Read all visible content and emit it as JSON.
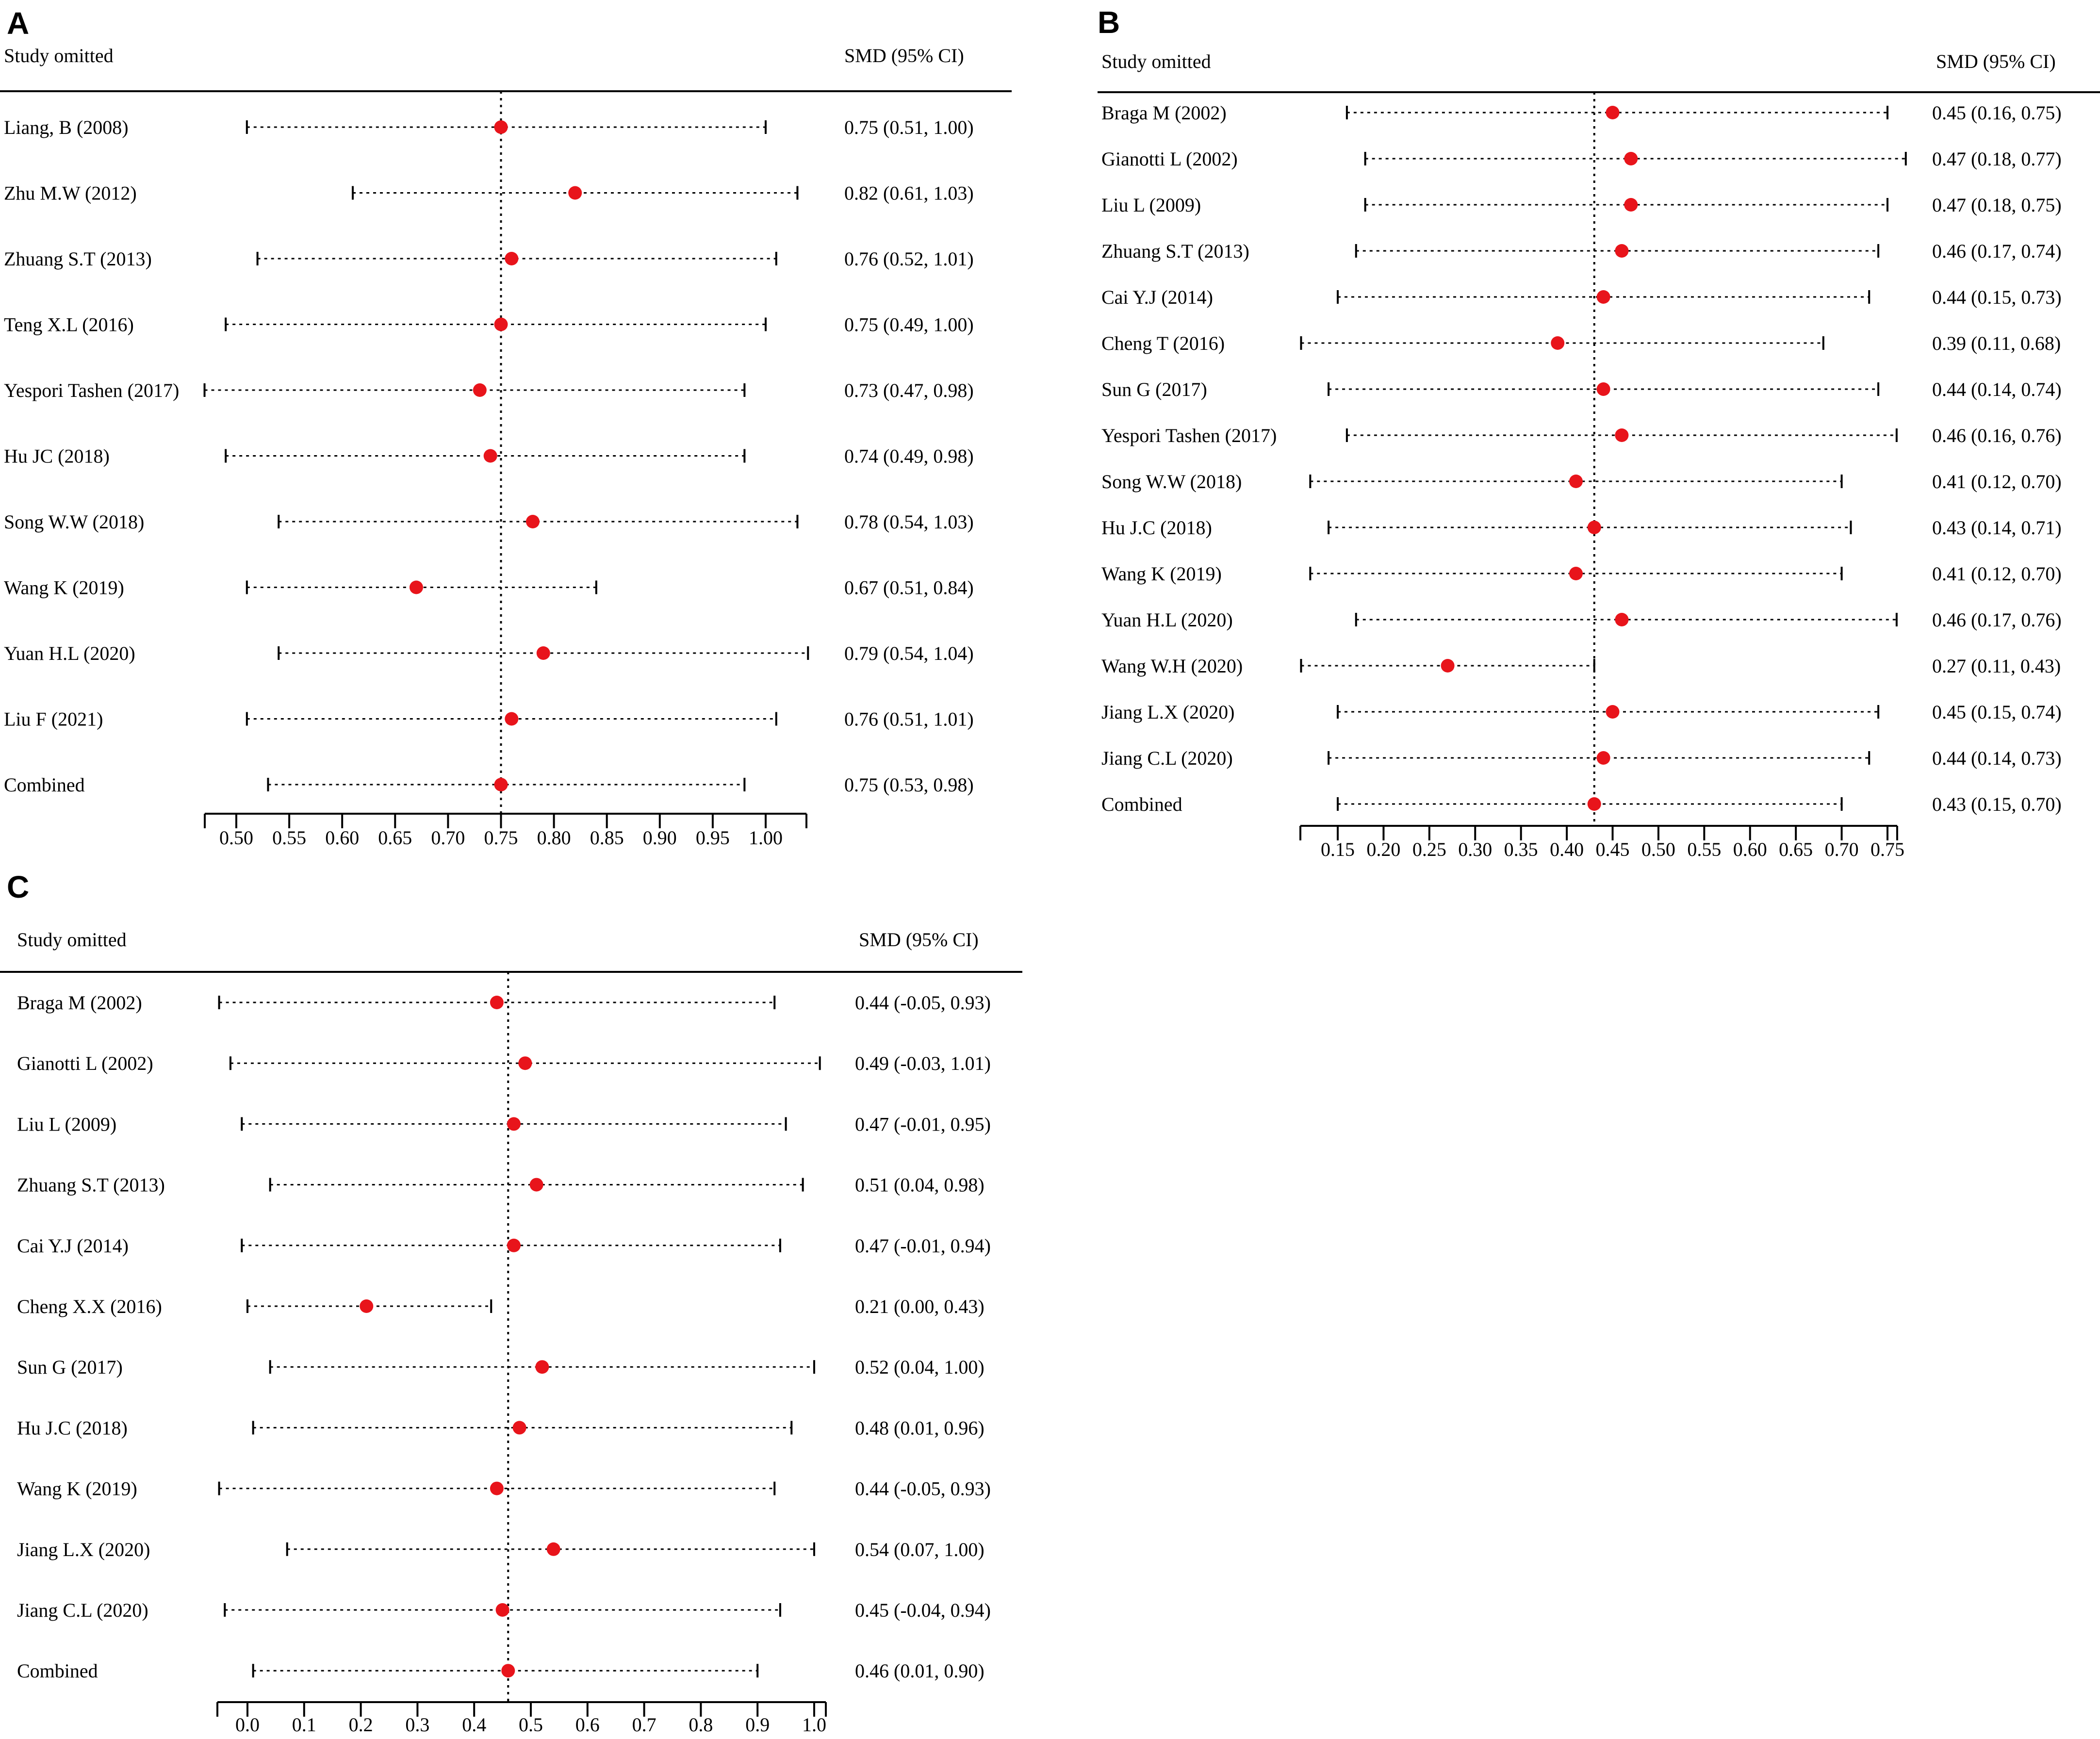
{
  "colors": {
    "point": "#e8141b",
    "line": "#000000",
    "background": "#ffffff"
  },
  "chart_data": [
    {
      "panel": "A",
      "type": "forest",
      "header_left": "Study omitted",
      "header_right": "SMD (95% CI)",
      "xlim": [
        0.47,
        1.04
      ],
      "ticks": [
        0.5,
        0.55,
        0.6,
        0.65,
        0.7,
        0.75,
        0.8,
        0.85,
        0.9,
        0.95,
        1.0
      ],
      "tick_labels": [
        "0.50",
        "0.55",
        "0.60",
        "0.65",
        "0.70",
        "0.75",
        "0.80",
        "0.85",
        "0.90",
        "0.95",
        "1.00"
      ],
      "reference": 0.75,
      "studies": [
        {
          "label": "Liang, B (2008)",
          "est": 0.75,
          "lo": 0.51,
          "hi": 1.0,
          "ci_text": "0.75 (0.51, 1.00)"
        },
        {
          "label": "Zhu M.W (2012)",
          "est": 0.82,
          "lo": 0.61,
          "hi": 1.03,
          "ci_text": "0.82 (0.61, 1.03)"
        },
        {
          "label": "Zhuang S.T (2013)",
          "est": 0.76,
          "lo": 0.52,
          "hi": 1.01,
          "ci_text": "0.76 (0.52, 1.01)"
        },
        {
          "label": "Teng X.L (2016)",
          "est": 0.75,
          "lo": 0.49,
          "hi": 1.0,
          "ci_text": "0.75 (0.49, 1.00)"
        },
        {
          "label": "Yespori Tashen (2017)",
          "est": 0.73,
          "lo": 0.47,
          "hi": 0.98,
          "ci_text": "0.73 (0.47, 0.98)"
        },
        {
          "label": "Hu JC (2018)",
          "est": 0.74,
          "lo": 0.49,
          "hi": 0.98,
          "ci_text": "0.74 (0.49, 0.98)"
        },
        {
          "label": "Song W.W (2018)",
          "est": 0.78,
          "lo": 0.54,
          "hi": 1.03,
          "ci_text": "0.78 (0.54, 1.03)"
        },
        {
          "label": "Wang K (2019)",
          "est": 0.67,
          "lo": 0.51,
          "hi": 0.84,
          "ci_text": "0.67 (0.51, 0.84)"
        },
        {
          "label": "Yuan H.L (2020)",
          "est": 0.79,
          "lo": 0.54,
          "hi": 1.04,
          "ci_text": "0.79 (0.54, 1.04)"
        },
        {
          "label": "Liu F (2021)",
          "est": 0.76,
          "lo": 0.51,
          "hi": 1.01,
          "ci_text": "0.76 (0.51, 1.01)"
        },
        {
          "label": "Combined",
          "est": 0.75,
          "lo": 0.53,
          "hi": 0.98,
          "ci_text": "0.75 (0.53, 0.98)"
        }
      ]
    },
    {
      "panel": "B",
      "type": "forest",
      "header_left": "Study omitted",
      "header_right": "SMD (95% CI)",
      "xlim": [
        0.11,
        0.76
      ],
      "ticks": [
        0.15,
        0.2,
        0.25,
        0.3,
        0.35,
        0.4,
        0.45,
        0.5,
        0.55,
        0.6,
        0.65,
        0.7,
        0.75
      ],
      "tick_labels": [
        "0.15",
        "0.20",
        "0.25",
        "0.30",
        "0.35",
        "0.40",
        "0.45",
        "0.50",
        "0.55",
        "0.60",
        "0.65",
        "0.70",
        "0.75"
      ],
      "reference": 0.43,
      "studies": [
        {
          "label": "Braga M (2002)",
          "est": 0.45,
          "lo": 0.16,
          "hi": 0.75,
          "ci_text": "0.45 (0.16, 0.75)"
        },
        {
          "label": "Gianotti L (2002)",
          "est": 0.47,
          "lo": 0.18,
          "hi": 0.77,
          "ci_text": "0.47 (0.18, 0.77)"
        },
        {
          "label": "Liu L (2009)",
          "est": 0.47,
          "lo": 0.18,
          "hi": 0.75,
          "ci_text": "0.47 (0.18, 0.75)"
        },
        {
          "label": "Zhuang S.T (2013)",
          "est": 0.46,
          "lo": 0.17,
          "hi": 0.74,
          "ci_text": "0.46 (0.17, 0.74)"
        },
        {
          "label": "Cai Y.J (2014)",
          "est": 0.44,
          "lo": 0.15,
          "hi": 0.73,
          "ci_text": "0.44 (0.15, 0.73)"
        },
        {
          "label": "Cheng T (2016)",
          "est": 0.39,
          "lo": 0.11,
          "hi": 0.68,
          "ci_text": "0.39 (0.11, 0.68)"
        },
        {
          "label": "Sun G (2017)",
          "est": 0.44,
          "lo": 0.14,
          "hi": 0.74,
          "ci_text": "0.44 (0.14, 0.74)"
        },
        {
          "label": "Yespori Tashen (2017)",
          "est": 0.46,
          "lo": 0.16,
          "hi": 0.76,
          "ci_text": "0.46 (0.16, 0.76)"
        },
        {
          "label": "Song W.W (2018)",
          "est": 0.41,
          "lo": 0.12,
          "hi": 0.7,
          "ci_text": "0.41 (0.12, 0.70)"
        },
        {
          "label": "Hu J.C (2018)",
          "est": 0.43,
          "lo": 0.14,
          "hi": 0.71,
          "ci_text": "0.43 (0.14, 0.71)"
        },
        {
          "label": "Wang K (2019)",
          "est": 0.41,
          "lo": 0.12,
          "hi": 0.7,
          "ci_text": "0.41 (0.12, 0.70)"
        },
        {
          "label": "Yuan H.L (2020)",
          "est": 0.46,
          "lo": 0.17,
          "hi": 0.76,
          "ci_text": "0.46 (0.17, 0.76)"
        },
        {
          "label": "Wang W.H (2020)",
          "est": 0.27,
          "lo": 0.11,
          "hi": 0.43,
          "ci_text": "0.27 (0.11, 0.43)"
        },
        {
          "label": "Jiang L.X (2020)",
          "est": 0.45,
          "lo": 0.15,
          "hi": 0.74,
          "ci_text": "0.45 (0.15, 0.74)"
        },
        {
          "label": "Jiang C.L (2020)",
          "est": 0.44,
          "lo": 0.14,
          "hi": 0.73,
          "ci_text": "0.44 (0.14, 0.73)"
        },
        {
          "label": "Combined",
          "est": 0.43,
          "lo": 0.15,
          "hi": 0.7,
          "ci_text": "0.43 (0.15, 0.70)"
        }
      ]
    },
    {
      "panel": "C",
      "type": "forest",
      "header_left": "Study omitted",
      "header_right": "SMD (95% CI)",
      "xlim": [
        -0.05,
        1.01
      ],
      "ticks": [
        0.0,
        0.1,
        0.2,
        0.3,
        0.4,
        0.5,
        0.6,
        0.7,
        0.8,
        0.9,
        1.0
      ],
      "tick_labels": [
        "0.0",
        "0.1",
        "0.2",
        "0.3",
        "0.4",
        "0.5",
        "0.6",
        "0.7",
        "0.8",
        "0.9",
        "1.0"
      ],
      "reference": 0.46,
      "studies": [
        {
          "label": "Braga M (2002)",
          "est": 0.44,
          "lo": -0.05,
          "hi": 0.93,
          "ci_text": "0.44 (-0.05, 0.93)"
        },
        {
          "label": "Gianotti L (2002)",
          "est": 0.49,
          "lo": -0.03,
          "hi": 1.01,
          "ci_text": "0.49 (-0.03, 1.01)"
        },
        {
          "label": "Liu L (2009)",
          "est": 0.47,
          "lo": -0.01,
          "hi": 0.95,
          "ci_text": "0.47 (-0.01, 0.95)"
        },
        {
          "label": "Zhuang S.T (2013)",
          "est": 0.51,
          "lo": 0.04,
          "hi": 0.98,
          "ci_text": "0.51 (0.04, 0.98)"
        },
        {
          "label": "Cai Y.J (2014)",
          "est": 0.47,
          "lo": -0.01,
          "hi": 0.94,
          "ci_text": "0.47 (-0.01, 0.94)"
        },
        {
          "label": "Cheng X.X (2016)",
          "est": 0.21,
          "lo": 0.0,
          "hi": 0.43,
          "ci_text": "0.21 (0.00, 0.43)"
        },
        {
          "label": "Sun G (2017)",
          "est": 0.52,
          "lo": 0.04,
          "hi": 1.0,
          "ci_text": "0.52 (0.04, 1.00)"
        },
        {
          "label": "Hu J.C (2018)",
          "est": 0.48,
          "lo": 0.01,
          "hi": 0.96,
          "ci_text": "0.48 (0.01, 0.96)"
        },
        {
          "label": "Wang K (2019)",
          "est": 0.44,
          "lo": -0.05,
          "hi": 0.93,
          "ci_text": "0.44 (-0.05, 0.93)"
        },
        {
          "label": "Jiang L.X (2020)",
          "est": 0.54,
          "lo": 0.07,
          "hi": 1.0,
          "ci_text": "0.54 (0.07, 1.00)"
        },
        {
          "label": "Jiang C.L (2020)",
          "est": 0.45,
          "lo": -0.04,
          "hi": 0.94,
          "ci_text": "0.45 (-0.04, 0.94)"
        },
        {
          "label": "Combined",
          "est": 0.46,
          "lo": 0.01,
          "hi": 0.9,
          "ci_text": "0.46 (0.01, 0.90)"
        }
      ]
    }
  ]
}
